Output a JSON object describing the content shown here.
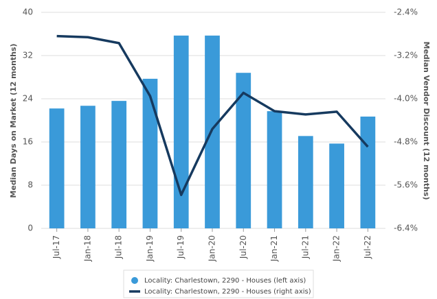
{
  "chart_data": {
    "type": "bar+line",
    "categories": [
      "Jul-17",
      "Jan-18",
      "Jul-18",
      "Jan-19",
      "Jul-19",
      "Jan-20",
      "Jul-20",
      "Jan-21",
      "Jul-21",
      "Jan-22",
      "Jul-22"
    ],
    "series": [
      {
        "name": "Locality: Charlestown, 2290 - Houses (left axis)",
        "color": "#3a9ad9",
        "type": "bar",
        "values": [
          22.2,
          22.7,
          23.6,
          27.7,
          35.7,
          35.7,
          28.8,
          21.7,
          17.1,
          15.7,
          20.7
        ]
      },
      {
        "name": "Locality: Charlestown, 2290 - Houses (right axis)",
        "color": "#163a5f",
        "type": "line",
        "axis": "y2",
        "values": [
          -2.84,
          -2.86,
          -2.97,
          -3.95,
          -5.78,
          -4.56,
          -3.89,
          -4.23,
          -4.29,
          -4.24,
          -4.89
        ]
      }
    ],
    "ylabel": "Median Days on Market (12 months)",
    "y2label": "Median Vendor Discount (12 months)",
    "ylim": [
      0,
      40
    ],
    "yticks": [
      0,
      8,
      16,
      24,
      32,
      40
    ],
    "y2lim": [
      -6.4,
      -2.4
    ],
    "y2ticks": [
      {
        "value": -6.4,
        "label": "-6.4%"
      },
      {
        "value": -5.6,
        "label": "-5.6%"
      },
      {
        "value": -4.8,
        "label": "-4.8%"
      },
      {
        "value": -4.0,
        "label": "-4.0%"
      },
      {
        "value": -3.2,
        "label": "-3.2%"
      },
      {
        "value": -2.4,
        "label": "-2.4%"
      }
    ],
    "grid": true,
    "legend": "bottom"
  }
}
